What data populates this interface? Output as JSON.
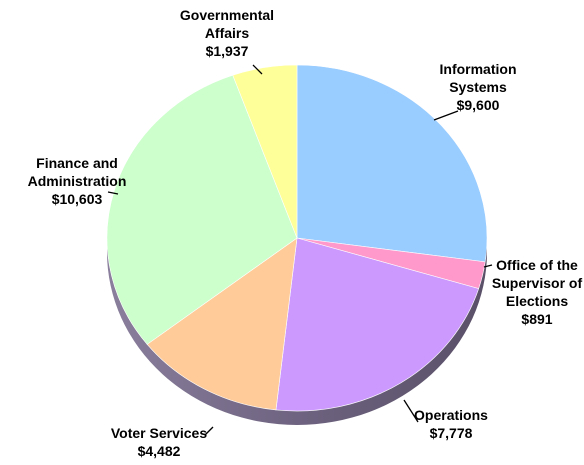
{
  "chart_data": {
    "type": "pie",
    "title": "",
    "slices": [
      {
        "name": "Information Systems",
        "label_lines": [
          "Information",
          "Systems"
        ],
        "value_label": "$9,600",
        "value": 9600,
        "color": "#99CCFF"
      },
      {
        "name": "Office of the Supervisor of Elections",
        "label_lines": [
          "Office of the",
          "Supervisor of",
          "Elections"
        ],
        "value_label": "$891",
        "value": 891,
        "color": "#FF99CC"
      },
      {
        "name": "Operations",
        "label_lines": [
          "Operations"
        ],
        "value_label": "$7,778",
        "value": 7778,
        "color": "#CC99FF"
      },
      {
        "name": "Voter Services",
        "label_lines": [
          "Voter Services"
        ],
        "value_label": "$4,482",
        "value": 4482,
        "color": "#FFCC99"
      },
      {
        "name": "Finance and Administration",
        "label_lines": [
          "Finance and",
          "Administration"
        ],
        "value_label": "$10,603",
        "value": 10603,
        "color": "#CCFFCC"
      },
      {
        "name": "Governmental Affairs",
        "label_lines": [
          "Governmental",
          "Affairs"
        ],
        "value_label": "$1,937",
        "value": 1937,
        "color": "#FFFF99"
      }
    ]
  }
}
